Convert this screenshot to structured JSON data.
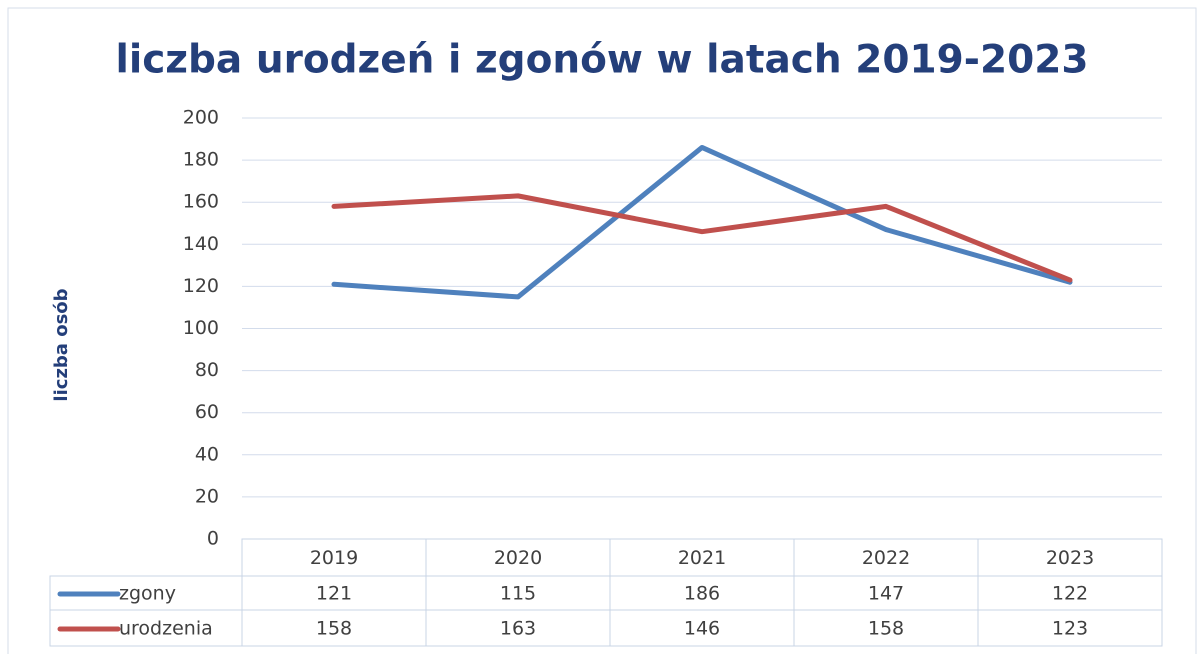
{
  "chart_data": {
    "type": "line",
    "title": "liczba urodzeń i zgonów w latach 2019-2023",
    "y_label": "liczba osób",
    "categories": [
      "2019",
      "2020",
      "2021",
      "2022",
      "2023"
    ],
    "series": [
      {
        "name": "zgony",
        "color": "#4f81bd",
        "values": [
          121,
          115,
          186,
          147,
          122
        ]
      },
      {
        "name": "urodzenia",
        "color": "#c0504d",
        "values": [
          158,
          163,
          146,
          158,
          123
        ]
      }
    ],
    "ylim": [
      0,
      200
    ],
    "yticks": [
      0,
      20,
      40,
      60,
      80,
      100,
      120,
      140,
      160,
      180,
      200
    ],
    "grid": true,
    "data_table": true
  }
}
